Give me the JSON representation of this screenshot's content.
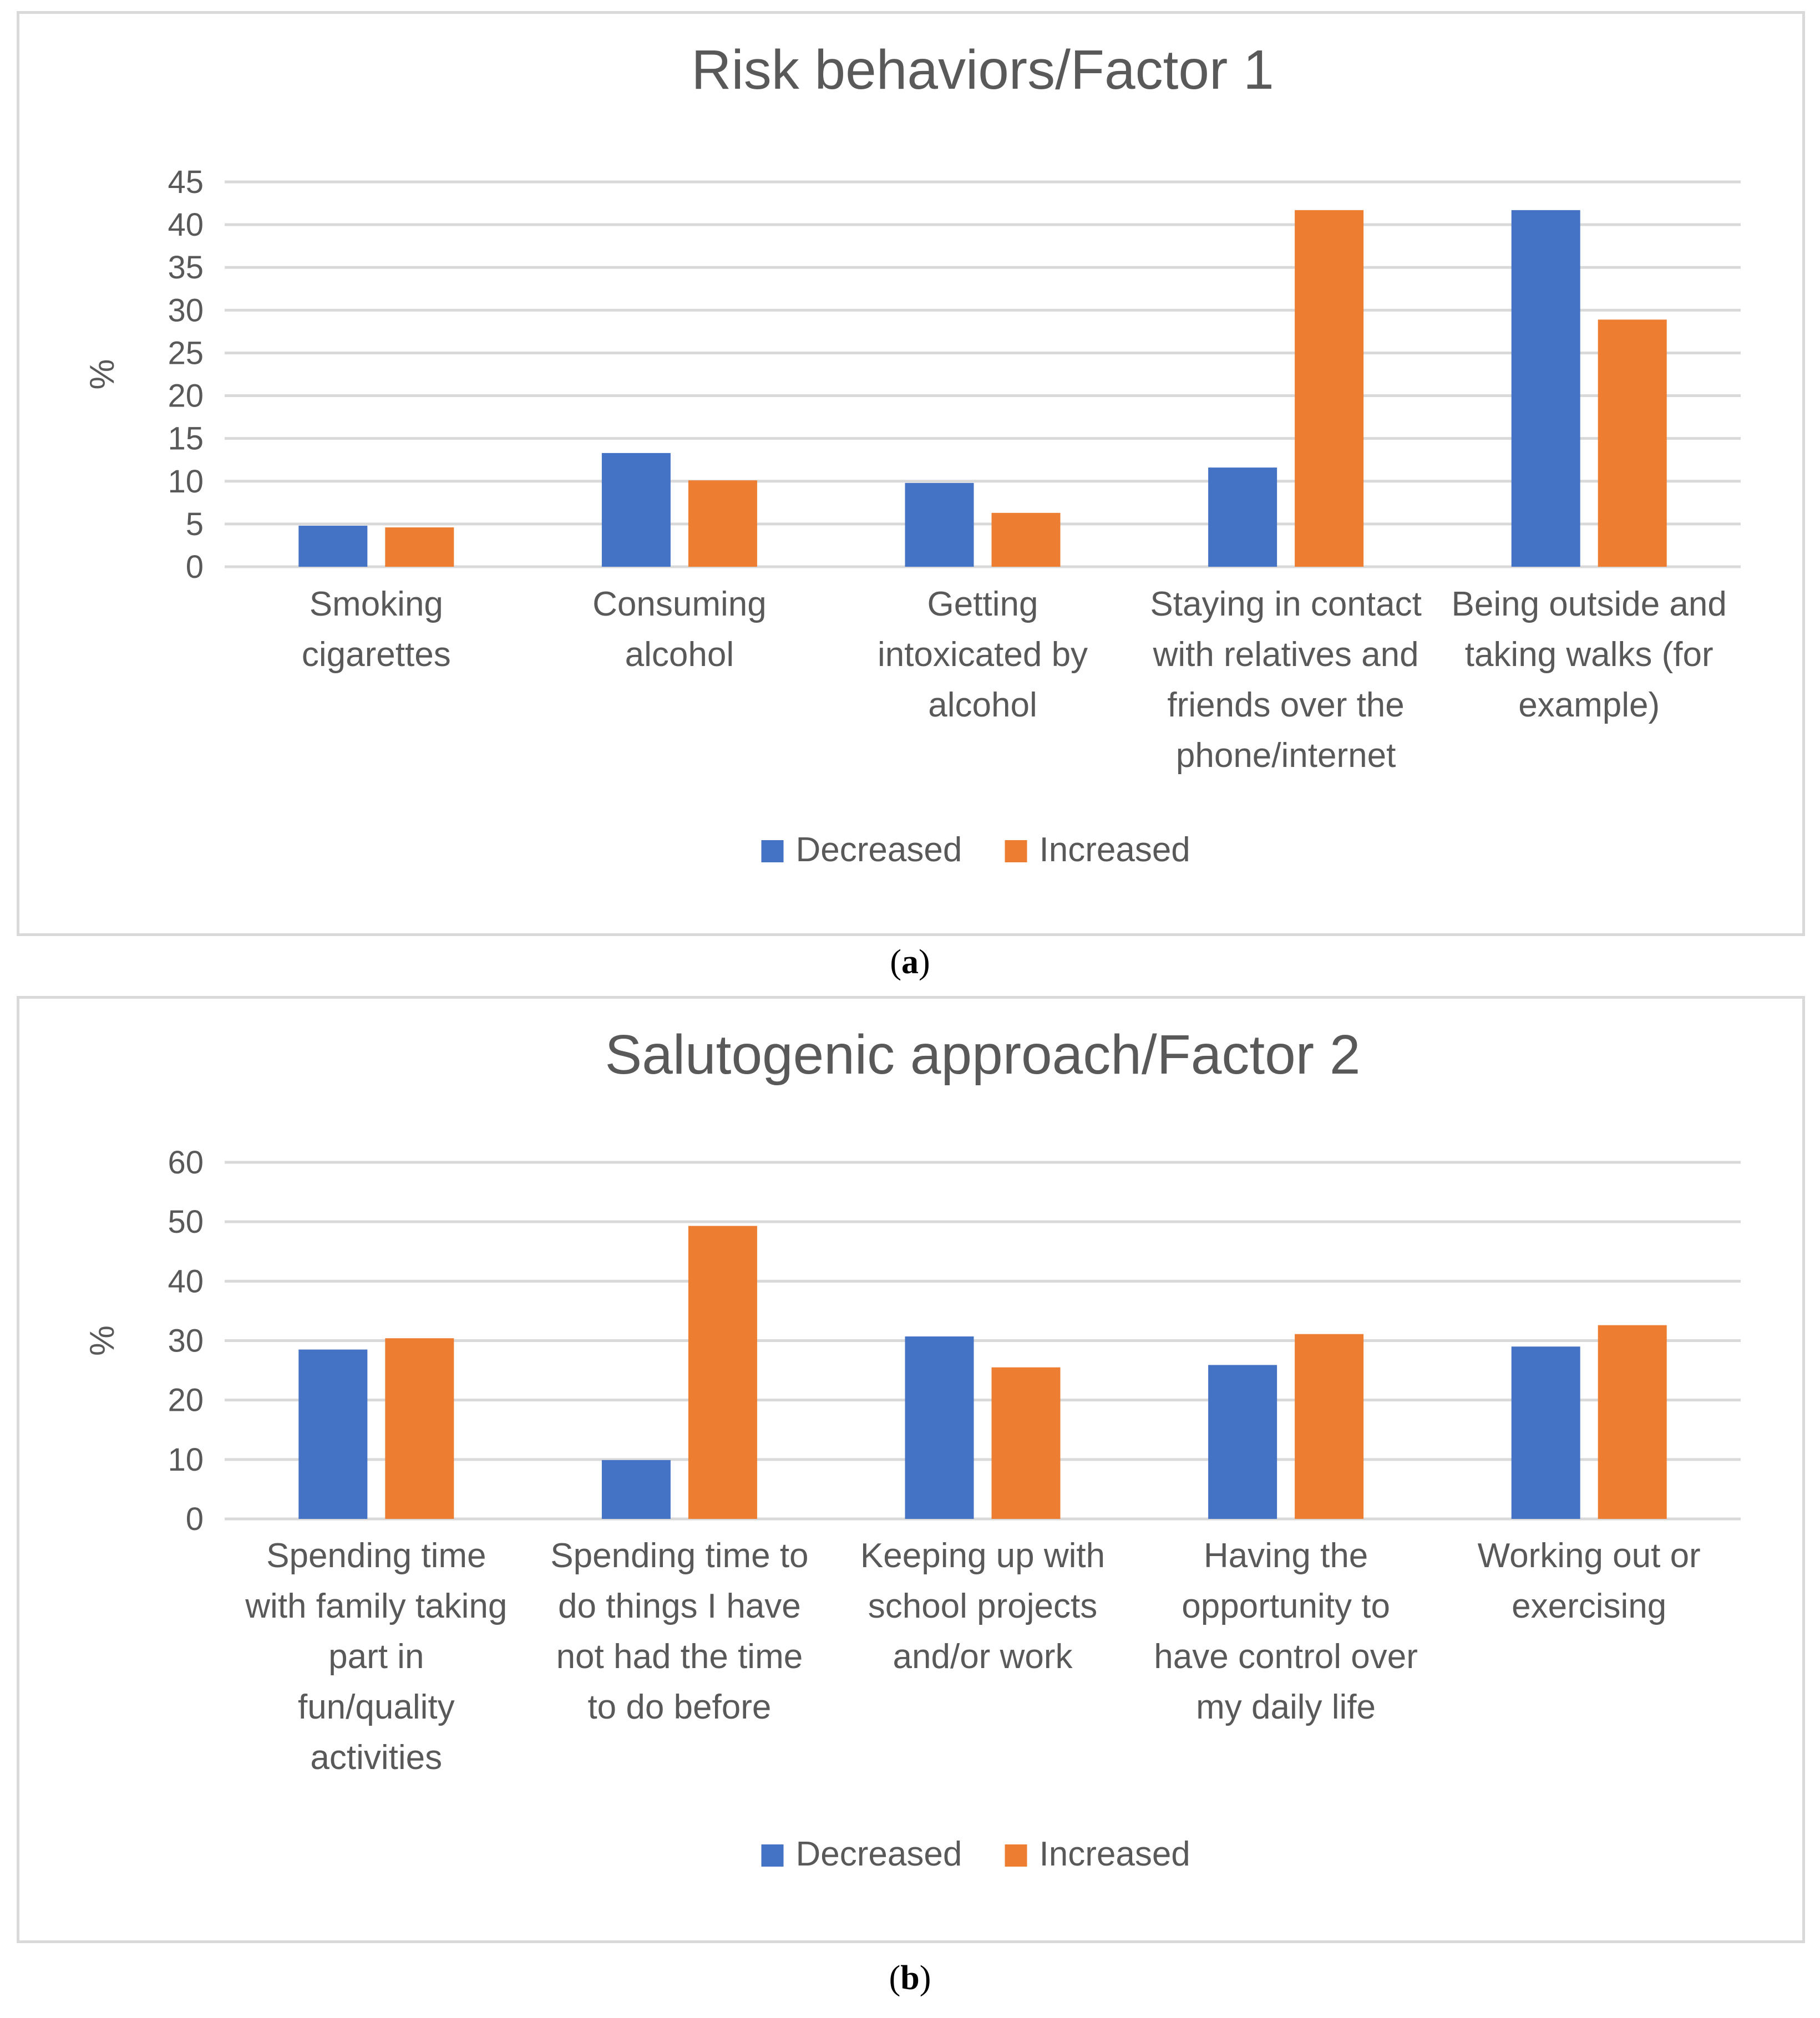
{
  "chart_data": [
    {
      "type": "bar",
      "id": "a",
      "title": "Risk behaviors/Factor 1",
      "ylabel": "%",
      "xlabel": "",
      "ylim": [
        0,
        45
      ],
      "yticks": [
        0,
        5,
        10,
        15,
        20,
        25,
        30,
        35,
        40,
        45
      ],
      "grid": true,
      "legend_position": "bottom",
      "categories": [
        [
          "Smoking",
          "cigarettes"
        ],
        [
          "Consuming",
          "alcohol"
        ],
        [
          "Getting",
          "intoxicated by",
          "alcohol"
        ],
        [
          "Staying in contact",
          "with relatives and",
          "friends over the",
          "phone/internet"
        ],
        [
          "Being outside and",
          "taking walks (for",
          "example)"
        ]
      ],
      "series": [
        {
          "name": "Decreased",
          "color": "#4472c4",
          "values": [
            4.8,
            13.3,
            9.8,
            11.6,
            41.7
          ]
        },
        {
          "name": "Increased",
          "color": "#ed7d31",
          "values": [
            4.6,
            10.1,
            6.3,
            41.7,
            28.9
          ]
        }
      ]
    },
    {
      "type": "bar",
      "id": "b",
      "title": "Salutogenic approach/Factor 2",
      "ylabel": "%",
      "xlabel": "",
      "ylim": [
        0,
        60
      ],
      "yticks": [
        0,
        10,
        20,
        30,
        40,
        50,
        60
      ],
      "grid": true,
      "legend_position": "bottom",
      "categories": [
        [
          "Spending time",
          "with family taking",
          "part in",
          "fun/quality",
          "activities"
        ],
        [
          "Spending time to",
          "do things I have",
          "not had the time",
          "to do before"
        ],
        [
          "Keeping up with",
          "school projects",
          "and/or work"
        ],
        [
          "Having the",
          "opportunity to",
          "have control over",
          "my daily life"
        ],
        [
          "Working out or",
          "exercising"
        ]
      ],
      "series": [
        {
          "name": "Decreased",
          "color": "#4472c4",
          "values": [
            28.5,
            9.9,
            30.7,
            25.9,
            29.0
          ]
        },
        {
          "name": "Increased",
          "color": "#ed7d31",
          "values": [
            30.4,
            49.3,
            25.5,
            31.1,
            32.6
          ]
        }
      ]
    }
  ],
  "captions": {
    "a": "a",
    "b": "b"
  }
}
